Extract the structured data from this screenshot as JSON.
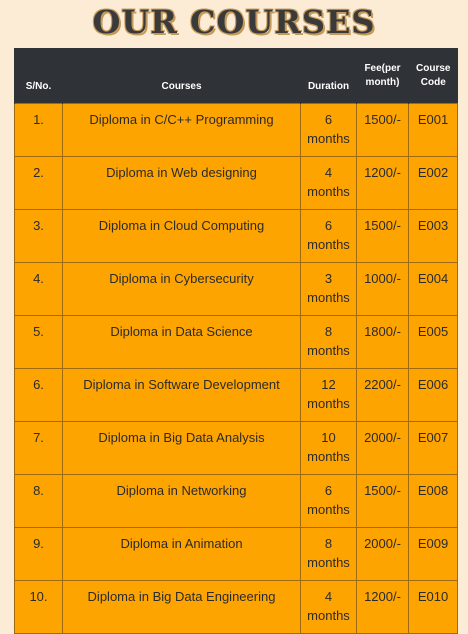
{
  "page": {
    "title": "OUR COURSES"
  },
  "table": {
    "headers": {
      "sno": "S/No.",
      "course": "Courses",
      "duration": "Duration",
      "fee_line1": "Fee(per",
      "fee_line2": "month)",
      "code_line1": "Course",
      "code_line2": "Code"
    },
    "rows": [
      {
        "sno": "1.",
        "course": "Diploma in C/C++ Programming",
        "duration_num": "6",
        "duration_unit": "months",
        "fee": "1500/-",
        "code": "E001"
      },
      {
        "sno": "2.",
        "course": "Diploma in Web designing",
        "duration_num": "4",
        "duration_unit": "months",
        "fee": "1200/-",
        "code": "E002"
      },
      {
        "sno": "3.",
        "course": "Diploma in Cloud Computing",
        "duration_num": "6",
        "duration_unit": "months",
        "fee": "1500/-",
        "code": "E003"
      },
      {
        "sno": "4.",
        "course": "Diploma in Cybersecurity",
        "duration_num": "3",
        "duration_unit": "months",
        "fee": "1000/-",
        "code": "E004"
      },
      {
        "sno": "5.",
        "course": "Diploma in Data Science",
        "duration_num": "8",
        "duration_unit": "months",
        "fee": "1800/-",
        "code": "E005"
      },
      {
        "sno": "6.",
        "course": "Diploma in Software Development",
        "duration_num": "12",
        "duration_unit": "months",
        "fee": "2200/-",
        "code": "E006"
      },
      {
        "sno": "7.",
        "course": "Diploma in Big Data Analysis",
        "duration_num": "10",
        "duration_unit": "months",
        "fee": "2000/-",
        "code": "E007"
      },
      {
        "sno": "8.",
        "course": "Diploma in Networking",
        "duration_num": "6",
        "duration_unit": "months",
        "fee": "1500/-",
        "code": "E008"
      },
      {
        "sno": "9.",
        "course": "Diploma in Animation",
        "duration_num": "8",
        "duration_unit": "months",
        "fee": "2000/-",
        "code": "E009"
      },
      {
        "sno": "10.",
        "course": "Diploma in Big Data Engineering",
        "duration_num": "4",
        "duration_unit": "months",
        "fee": "1200/-",
        "code": "E010"
      }
    ]
  },
  "colors": {
    "page_background": "#fdecd5",
    "header_background": "#2f3236",
    "row_background": "#fea400",
    "border": "#a06a10"
  }
}
